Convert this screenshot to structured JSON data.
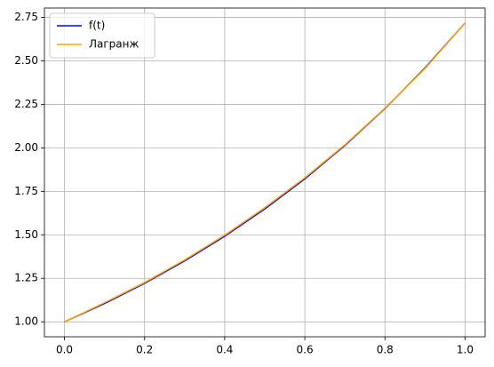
{
  "chart_data": {
    "type": "line",
    "x": [
      0,
      0.1,
      0.2,
      0.3,
      0.4,
      0.5,
      0.6,
      0.7,
      0.8,
      0.9,
      1
    ],
    "series": [
      {
        "name": "f(t)",
        "color": "#0000ff",
        "values": [
          1,
          1.105,
          1.221,
          1.35,
          1.492,
          1.649,
          1.822,
          2.014,
          2.226,
          2.46,
          2.718
        ]
      },
      {
        "name": "Лагранж",
        "color": "#ffa500",
        "values": [
          1,
          1.11,
          1.226,
          1.356,
          1.498,
          1.656,
          1.828,
          2.018,
          2.228,
          2.456,
          2.718
        ]
      }
    ],
    "xlim": [
      -0.05,
      1.05
    ],
    "xticks": [
      {
        "value": 0,
        "label": "0.0"
      },
      0.2,
      0.4,
      0.6,
      0.8,
      {
        "value": 1,
        "label": "1.0"
      }
    ],
    "ylim": [
      0.914,
      2.804
    ],
    "yticks": [
      {
        "value": 1,
        "label": "1.00"
      },
      1.25,
      {
        "value": 1.5,
        "label": "1.50"
      },
      1.75,
      {
        "value": 2,
        "label": "2.00"
      },
      2.25,
      {
        "value": 2.5,
        "label": "2.50"
      },
      2.75
    ],
    "grid": true,
    "legend": "upper left"
  }
}
